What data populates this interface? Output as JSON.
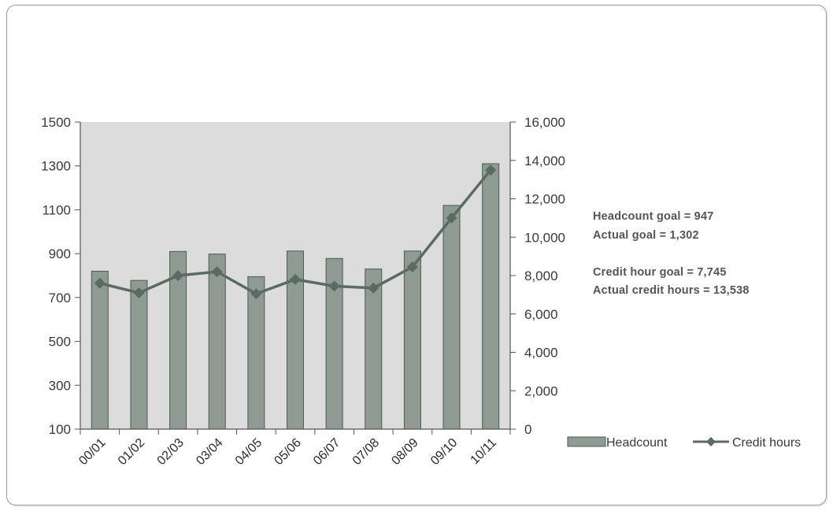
{
  "chart_data": {
    "type": "bar",
    "categories": [
      "00/01",
      "01/02",
      "02/03",
      "03/04",
      "04/05",
      "05/06",
      "06/07",
      "07/08",
      "08/09",
      "09/10",
      "10/11"
    ],
    "series": [
      {
        "name": "Headcount",
        "type": "bar",
        "axis": "left",
        "values": [
          820,
          778,
          910,
          898,
          795,
          912,
          878,
          830,
          912,
          1120,
          1310
        ]
      },
      {
        "name": "Credit hours",
        "type": "line",
        "axis": "right",
        "values": [
          7600,
          7100,
          8000,
          8200,
          7050,
          7800,
          7450,
          7350,
          8450,
          11000,
          13500
        ]
      }
    ],
    "y_left": {
      "min": 100,
      "max": 1500,
      "ticks": [
        100,
        300,
        500,
        700,
        900,
        1100,
        1300,
        1500
      ]
    },
    "y_right": {
      "min": 0,
      "max": 16000,
      "ticks": [
        0,
        2000,
        4000,
        6000,
        8000,
        10000,
        12000,
        14000,
        16000
      ],
      "tick_labels": [
        "0",
        "2,000",
        "4,000",
        "6,000",
        "8,000",
        "10,000",
        "12,000",
        "14,000",
        "16,000"
      ]
    },
    "legend": [
      "Headcount",
      "Credit hours"
    ],
    "legend_position": "bottom-right",
    "annotations": {
      "headcount_goal": "Headcount goal = 947",
      "actual_goal": "Actual goal = 1,302",
      "credit_goal": "Credit hour goal = 7,745",
      "actual_credit": "Actual credit hours = 13,538"
    },
    "colors": {
      "bar_fill": "#8e9a92",
      "bar_stroke": "#4e5a54",
      "line": "#5b6b64",
      "plot_bg": "#dcdcdc",
      "axis": "#555555"
    }
  }
}
